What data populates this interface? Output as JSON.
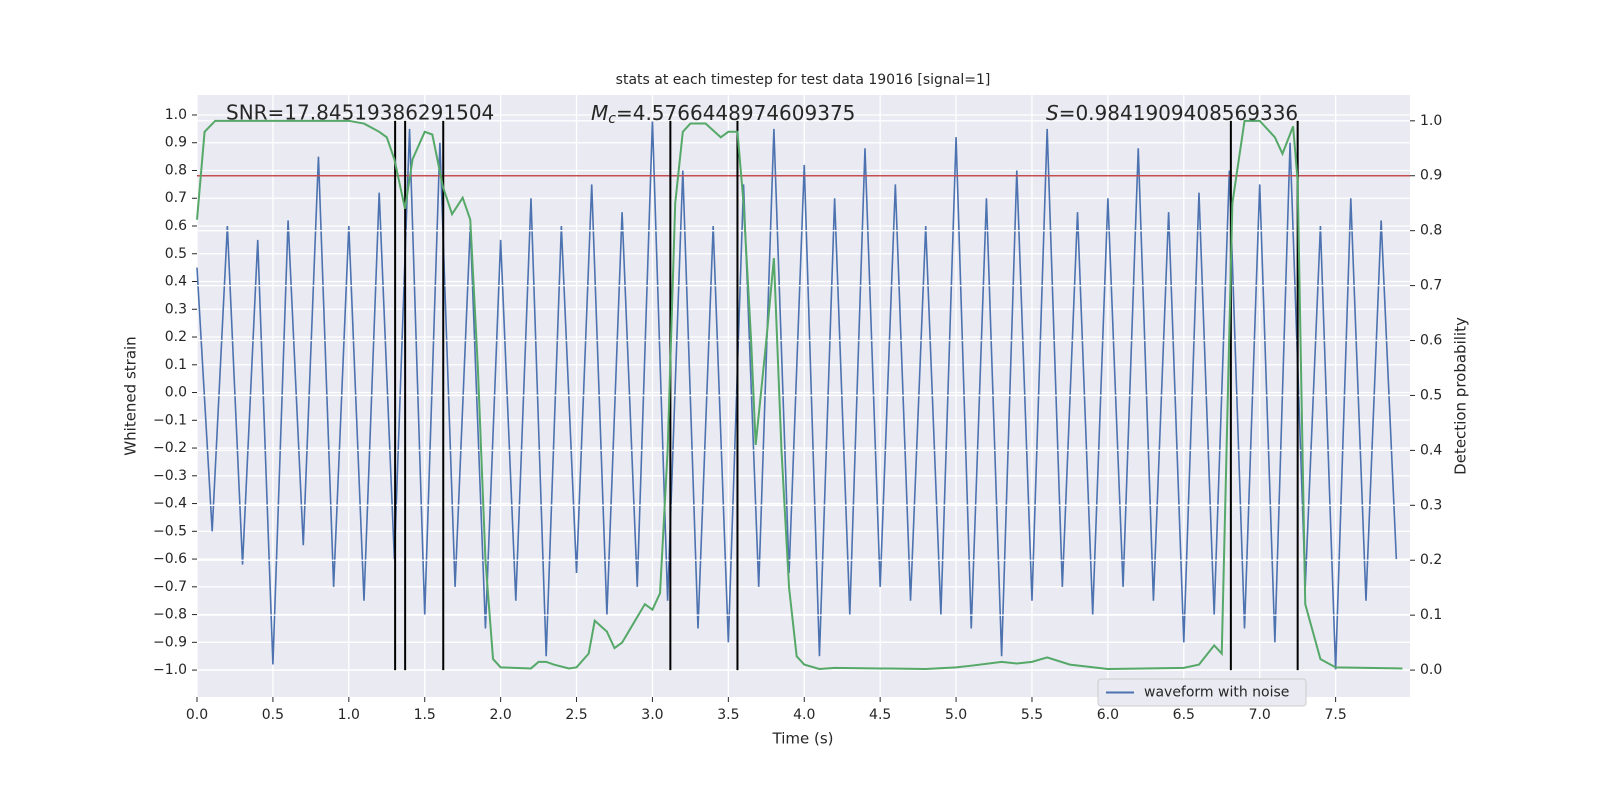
{
  "chart_data": {
    "type": "line",
    "title": "stats at each timestep for test data 19016 [signal=1]",
    "xlabel": "Time (s)",
    "ylabel": "Whitened strain",
    "y2label": "Detection probability",
    "annotations": [
      {
        "text": "SNR=17.84519386291504"
      },
      {
        "symbol": "M",
        "subscript": "c",
        "text": "=4.5766448974609375"
      },
      {
        "symbol": "S",
        "text": "=0.9841909408569336"
      }
    ],
    "xlim": [
      0,
      7.99
    ],
    "xticks": [
      {
        "value": 0,
        "label": "0.0"
      },
      0.5,
      {
        "value": 1,
        "label": "1.0"
      },
      1.5,
      {
        "value": 2,
        "label": "2.0"
      },
      2.5,
      {
        "value": 3,
        "label": "3.0"
      },
      3.5,
      {
        "value": 4,
        "label": "4.0"
      },
      4.5,
      {
        "value": 5,
        "label": "5.0"
      },
      5.5,
      {
        "value": 6,
        "label": "6.0"
      },
      6.5,
      {
        "value": 7,
        "label": "7.0"
      },
      7.5
    ],
    "ylim": [
      -1.097,
      1.072
    ],
    "yticks": [
      {
        "value": -1,
        "label": "−1.0"
      },
      {
        "value": -0.9,
        "label": "−0.9"
      },
      {
        "value": -0.8,
        "label": "−0.8"
      },
      {
        "value": -0.7,
        "label": "−0.7"
      },
      {
        "value": -0.6,
        "label": "−0.6"
      },
      {
        "value": -0.5,
        "label": "−0.5"
      },
      {
        "value": -0.4,
        "label": "−0.4"
      },
      {
        "value": -0.3,
        "label": "−0.3"
      },
      {
        "value": -0.2,
        "label": "−0.2"
      },
      {
        "value": -0.1,
        "label": "−0.1"
      },
      {
        "value": 0,
        "label": "0.0"
      },
      0.1,
      0.2,
      0.3,
      0.4,
      0.5,
      0.6,
      0.7,
      0.8,
      0.9,
      {
        "value": 1,
        "label": "1.0"
      }
    ],
    "y2lim": [
      -0.049,
      1.047
    ],
    "y2ticks": [
      {
        "value": 0,
        "label": "0.0"
      },
      0.1,
      0.2,
      0.3,
      0.4,
      0.5,
      0.6,
      0.7,
      0.8,
      0.9,
      {
        "value": 1,
        "label": "1.0"
      }
    ],
    "grid": true,
    "legend": "lower right",
    "series": [
      {
        "name": "waveform with noise",
        "color": "#4c72b0",
        "x": [
          0,
          0.1,
          0.2,
          0.3,
          0.4,
          0.5,
          0.6,
          0.7,
          0.8,
          0.9,
          1,
          1.1,
          1.2,
          1.3,
          1.4,
          1.5,
          1.6,
          1.7,
          1.8,
          1.9,
          2,
          2.1,
          2.2,
          2.3,
          2.4,
          2.5,
          2.6,
          2.7,
          2.8,
          2.9,
          3,
          3.1,
          3.2,
          3.3,
          3.4,
          3.5,
          3.6,
          3.7,
          3.8,
          3.9,
          4,
          4.1,
          4.2,
          4.3,
          4.4,
          4.5,
          4.6,
          4.7,
          4.8,
          4.9,
          5,
          5.1,
          5.2,
          5.3,
          5.4,
          5.5,
          5.6,
          5.7,
          5.8,
          5.9,
          6,
          6.1,
          6.2,
          6.3,
          6.4,
          6.5,
          6.6,
          6.7,
          6.8,
          6.9,
          7,
          7.1,
          7.2,
          7.3,
          7.4,
          7.5,
          7.6,
          7.7,
          7.8,
          7.9
        ],
        "values": [
          0.45,
          -0.5,
          0.6,
          -0.62,
          0.55,
          -0.98,
          0.62,
          -0.55,
          0.85,
          -0.7,
          0.6,
          -0.75,
          0.72,
          -0.6,
          0.95,
          -0.8,
          0.9,
          -0.7,
          0.6,
          -0.85,
          0.55,
          -0.75,
          0.7,
          -0.95,
          0.6,
          -0.65,
          0.75,
          -0.8,
          0.65,
          -0.7,
          0.98,
          -0.75,
          0.8,
          -0.85,
          0.6,
          -0.9,
          0.75,
          -0.7,
          0.95,
          -0.65,
          0.82,
          -0.95,
          0.7,
          -0.8,
          0.88,
          -0.7,
          0.75,
          -0.75,
          0.6,
          -0.8,
          0.92,
          -0.85,
          0.7,
          -0.95,
          0.8,
          -0.75,
          0.95,
          -0.7,
          0.65,
          -0.8,
          0.7,
          -0.7,
          0.88,
          -0.75,
          0.65,
          -0.9,
          0.72,
          -0.8,
          0.8,
          -0.85,
          0.75,
          -0.9,
          0.9,
          -0.7,
          0.6,
          -1.0,
          0.7,
          -0.75,
          0.62,
          -0.6
        ]
      },
      {
        "color": "#55a868",
        "axis": "y2",
        "x": [
          0,
          0.05,
          0.12,
          0.5,
          1,
          1.1,
          1.2,
          1.25,
          1.3,
          1.37,
          1.42,
          1.5,
          1.55,
          1.62,
          1.68,
          1.75,
          1.8,
          1.85,
          1.9,
          1.95,
          2,
          2.2,
          2.25,
          2.3,
          2.35,
          2.45,
          2.5,
          2.58,
          2.62,
          2.7,
          2.75,
          2.8,
          2.95,
          3,
          3.05,
          3.1,
          3.15,
          3.2,
          3.25,
          3.35,
          3.45,
          3.5,
          3.56,
          3.6,
          3.65,
          3.68,
          3.75,
          3.8,
          3.85,
          3.9,
          3.95,
          4,
          4.1,
          4.2,
          4.5,
          4.8,
          5,
          5.1,
          5.3,
          5.4,
          5.5,
          5.6,
          5.75,
          6,
          6.5,
          6.6,
          6.7,
          6.75,
          6.82,
          6.9,
          7,
          7.1,
          7.15,
          7.22,
          7.25,
          7.3,
          7.4,
          7.5,
          7.94
        ],
        "values": [
          0.82,
          0.98,
          1,
          1,
          1,
          0.995,
          0.98,
          0.97,
          0.93,
          0.84,
          0.93,
          0.98,
          0.975,
          0.88,
          0.83,
          0.86,
          0.82,
          0.55,
          0.2,
          0.02,
          0.005,
          0.003,
          0.015,
          0.015,
          0.01,
          0.003,
          0.005,
          0.03,
          0.09,
          0.07,
          0.04,
          0.05,
          0.12,
          0.11,
          0.14,
          0.4,
          0.85,
          0.98,
          0.995,
          0.995,
          0.97,
          0.98,
          0.98,
          0.85,
          0.6,
          0.41,
          0.6,
          0.75,
          0.4,
          0.15,
          0.025,
          0.01,
          0.002,
          0.004,
          0.003,
          0.002,
          0.005,
          0.008,
          0.015,
          0.012,
          0.015,
          0.023,
          0.01,
          0.002,
          0.004,
          0.01,
          0.045,
          0.03,
          0.85,
          1,
          1,
          0.97,
          0.94,
          0.99,
          0.89,
          0.12,
          0.02,
          0.005,
          0.003
        ]
      }
    ],
    "hlines": [
      {
        "value": 0.9,
        "axis": "y2",
        "color": "#c44e52"
      }
    ],
    "vlines": {
      "color": "#000000",
      "values": [
        1.305,
        1.371,
        1.622,
        3.118,
        3.56,
        6.81,
        7.25
      ]
    }
  }
}
